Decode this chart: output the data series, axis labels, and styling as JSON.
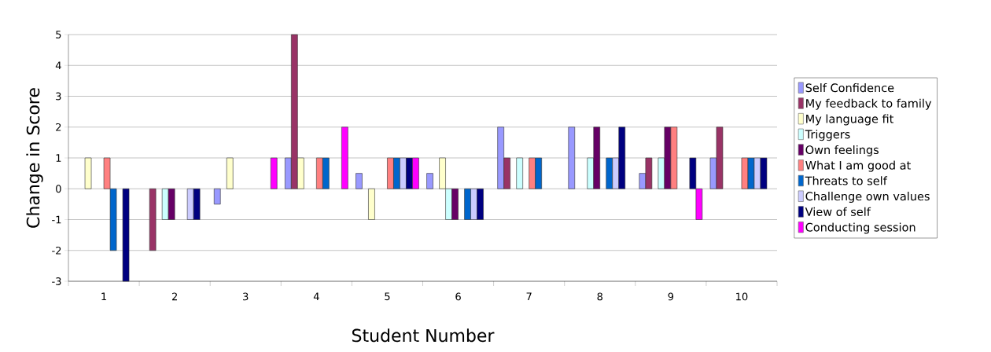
{
  "chart_data": {
    "type": "bar",
    "xlabel": "Student Number",
    "ylabel": "Change in Score",
    "categories": [
      "1",
      "2",
      "3",
      "4",
      "5",
      "6",
      "7",
      "8",
      "9",
      "10"
    ],
    "series": [
      {
        "name": "Self Confidence",
        "color": "#9999ff",
        "values": [
          null,
          null,
          -0.5,
          1,
          0.5,
          0.5,
          2,
          2,
          0.5,
          1
        ]
      },
      {
        "name": "My feedback to family",
        "color": "#993366",
        "values": [
          null,
          -2,
          null,
          5,
          null,
          null,
          1,
          null,
          1,
          2
        ]
      },
      {
        "name": "My language fit",
        "color": "#ffffcc",
        "values": [
          1,
          null,
          1,
          1,
          -1,
          1,
          null,
          null,
          null,
          null
        ]
      },
      {
        "name": "Triggers",
        "color": "#ccffff",
        "values": [
          null,
          -1,
          null,
          null,
          null,
          -1,
          1,
          1,
          1,
          null
        ]
      },
      {
        "name": "Own feelings",
        "color": "#660066",
        "values": [
          null,
          -1,
          null,
          null,
          null,
          -1,
          null,
          2,
          2,
          null
        ]
      },
      {
        "name": "What I am good at",
        "color": "#ff8080",
        "values": [
          1,
          null,
          null,
          1,
          1,
          null,
          1,
          null,
          2,
          1
        ]
      },
      {
        "name": "Threats to self",
        "color": "#0066cc",
        "values": [
          -2,
          null,
          null,
          1,
          1,
          -1,
          1,
          1,
          null,
          1
        ]
      },
      {
        "name": "Challenge own values",
        "color": "#ccccff",
        "values": [
          null,
          -1,
          null,
          null,
          1,
          -1,
          null,
          1,
          null,
          1
        ]
      },
      {
        "name": "View of self",
        "color": "#000080",
        "values": [
          -3,
          -1,
          null,
          null,
          1,
          -1,
          null,
          2,
          1,
          1
        ]
      },
      {
        "name": "Conducting session",
        "color": "#ff00ff",
        "values": [
          null,
          null,
          1,
          2,
          1,
          null,
          null,
          null,
          -1,
          null
        ]
      }
    ],
    "ylim": [
      -3,
      5
    ],
    "yticks": [
      -3,
      -2,
      -1,
      0,
      1,
      2,
      3,
      4,
      5
    ],
    "grid": "y",
    "legend": "right"
  }
}
